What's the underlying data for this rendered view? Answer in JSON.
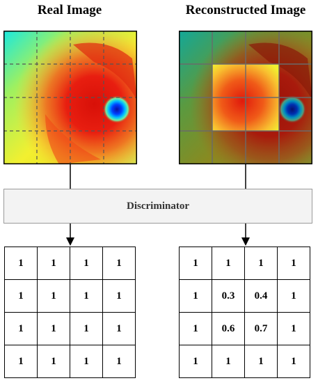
{
  "titles": {
    "real": "Real Image",
    "reconstructed": "Reconstructed Image"
  },
  "discriminator": {
    "label": "Discriminator"
  },
  "grids": {
    "real": [
      [
        "1",
        "1",
        "1",
        "1"
      ],
      [
        "1",
        "1",
        "1",
        "1"
      ],
      [
        "1",
        "1",
        "1",
        "1"
      ],
      [
        "1",
        "1",
        "1",
        "1"
      ]
    ],
    "reconstructed": [
      [
        "1",
        "1",
        "1",
        "1"
      ],
      [
        "1",
        "0.3",
        "0.4",
        "1"
      ],
      [
        "1",
        "0.6",
        "0.7",
        "1"
      ],
      [
        "1",
        "1",
        "1",
        "1"
      ]
    ]
  },
  "colors": {
    "box_fill": "#f3f3f3",
    "box_border": "#9a9a9a",
    "text": "#000000"
  }
}
